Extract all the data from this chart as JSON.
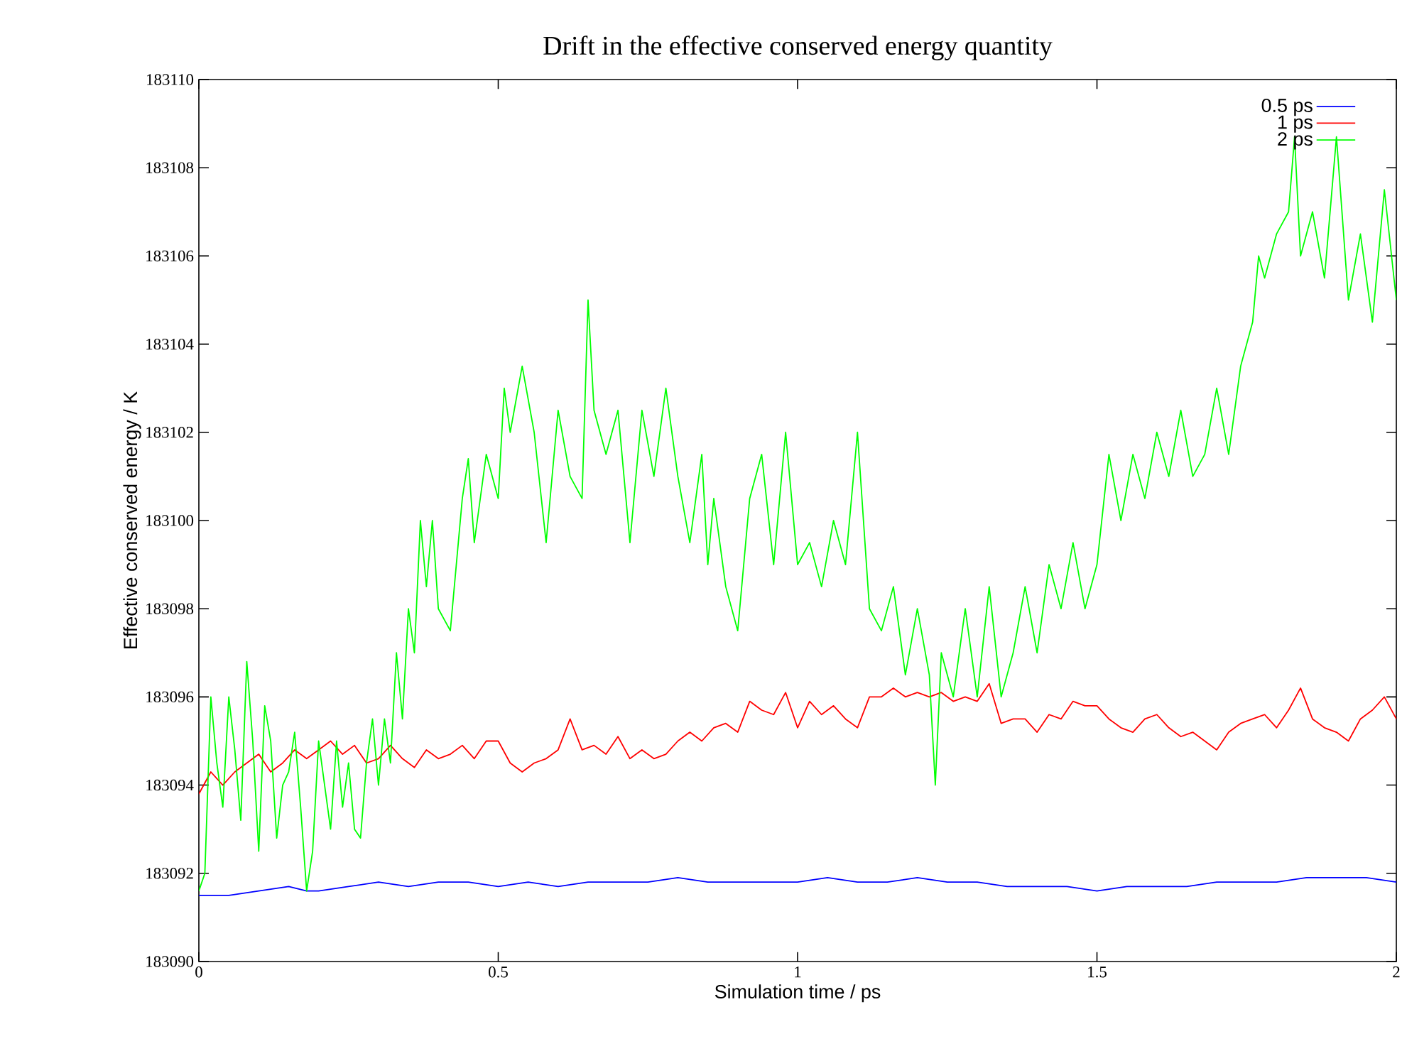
{
  "chart_data": {
    "type": "line",
    "title": "Drift in the effective conserved energy quantity",
    "xlabel": "Simulation time / ps",
    "ylabel": "Effective conserved energy / K",
    "xlim": [
      0,
      2
    ],
    "xticks": [
      0,
      0.5,
      1,
      1.5,
      2
    ],
    "ylim": [
      183090,
      183110
    ],
    "yticks": [
      183090,
      183092,
      183094,
      183096,
      183098,
      183100,
      183102,
      183104,
      183106,
      183108,
      183110
    ],
    "legend": "top right",
    "series": [
      {
        "name": "0.5 ps",
        "color": "#0000ff",
        "x": [
          0,
          0.05,
          0.1,
          0.15,
          0.18,
          0.2,
          0.25,
          0.3,
          0.35,
          0.4,
          0.45,
          0.5,
          0.55,
          0.6,
          0.65,
          0.7,
          0.75,
          0.8,
          0.85,
          0.9,
          0.95,
          1.0,
          1.05,
          1.1,
          1.15,
          1.2,
          1.25,
          1.3,
          1.35,
          1.4,
          1.45,
          1.5,
          1.55,
          1.6,
          1.65,
          1.7,
          1.75,
          1.8,
          1.85,
          1.9,
          1.95,
          2.0
        ],
        "values": [
          183091.5,
          183091.5,
          183091.6,
          183091.7,
          183091.6,
          183091.6,
          183091.7,
          183091.8,
          183091.7,
          183091.8,
          183091.8,
          183091.7,
          183091.8,
          183091.7,
          183091.8,
          183091.8,
          183091.8,
          183091.9,
          183091.8,
          183091.8,
          183091.8,
          183091.8,
          183091.9,
          183091.8,
          183091.8,
          183091.9,
          183091.8,
          183091.8,
          183091.7,
          183091.7,
          183091.7,
          183091.6,
          183091.7,
          183091.7,
          183091.7,
          183091.8,
          183091.8,
          183091.8,
          183091.9,
          183091.9,
          183091.9,
          183091.8
        ]
      },
      {
        "name": "1 ps",
        "color": "#ff0000",
        "x": [
          0,
          0.02,
          0.04,
          0.06,
          0.08,
          0.1,
          0.12,
          0.14,
          0.16,
          0.18,
          0.2,
          0.22,
          0.24,
          0.26,
          0.28,
          0.3,
          0.32,
          0.34,
          0.36,
          0.38,
          0.4,
          0.42,
          0.44,
          0.46,
          0.48,
          0.5,
          0.52,
          0.54,
          0.56,
          0.58,
          0.6,
          0.62,
          0.64,
          0.66,
          0.68,
          0.7,
          0.72,
          0.74,
          0.76,
          0.78,
          0.8,
          0.82,
          0.84,
          0.86,
          0.88,
          0.9,
          0.92,
          0.94,
          0.96,
          0.98,
          1.0,
          1.02,
          1.04,
          1.06,
          1.08,
          1.1,
          1.12,
          1.14,
          1.16,
          1.18,
          1.2,
          1.22,
          1.24,
          1.26,
          1.28,
          1.3,
          1.32,
          1.34,
          1.36,
          1.38,
          1.4,
          1.42,
          1.44,
          1.46,
          1.48,
          1.5,
          1.52,
          1.54,
          1.56,
          1.58,
          1.6,
          1.62,
          1.64,
          1.66,
          1.68,
          1.7,
          1.72,
          1.74,
          1.76,
          1.78,
          1.8,
          1.82,
          1.84,
          1.86,
          1.88,
          1.9,
          1.92,
          1.94,
          1.96,
          1.98,
          2.0
        ],
        "values": [
          183093.8,
          183094.3,
          183094.0,
          183094.3,
          183094.5,
          183094.7,
          183094.3,
          183094.5,
          183094.8,
          183094.6,
          183094.8,
          183095.0,
          183094.7,
          183094.9,
          183094.5,
          183094.6,
          183094.9,
          183094.6,
          183094.4,
          183094.8,
          183094.6,
          183094.7,
          183094.9,
          183094.6,
          183095.0,
          183095.0,
          183094.5,
          183094.3,
          183094.5,
          183094.6,
          183094.8,
          183095.5,
          183094.8,
          183094.9,
          183094.7,
          183095.1,
          183094.6,
          183094.8,
          183094.6,
          183094.7,
          183095.0,
          183095.2,
          183095.0,
          183095.3,
          183095.4,
          183095.2,
          183095.9,
          183095.7,
          183095.6,
          183096.1,
          183095.3,
          183095.9,
          183095.6,
          183095.8,
          183095.5,
          183095.3,
          183096.0,
          183096.0,
          183096.2,
          183096.0,
          183096.1,
          183096.0,
          183096.1,
          183095.9,
          183096.0,
          183095.9,
          183096.3,
          183095.4,
          183095.5,
          183095.5,
          183095.2,
          183095.6,
          183095.5,
          183095.9,
          183095.8,
          183095.8,
          183095.5,
          183095.3,
          183095.2,
          183095.5,
          183095.6,
          183095.3,
          183095.1,
          183095.2,
          183095.0,
          183094.8,
          183095.2,
          183095.4,
          183095.5,
          183095.6,
          183095.3,
          183095.7,
          183096.2,
          183095.5,
          183095.3,
          183095.2,
          183095.0,
          183095.5,
          183095.7,
          183096.0,
          183095.5
        ]
      },
      {
        "name": "2 ps",
        "color": "#00ff00",
        "x": [
          0,
          0.01,
          0.02,
          0.03,
          0.04,
          0.05,
          0.06,
          0.07,
          0.08,
          0.09,
          0.1,
          0.11,
          0.12,
          0.13,
          0.14,
          0.15,
          0.16,
          0.17,
          0.18,
          0.19,
          0.2,
          0.21,
          0.22,
          0.23,
          0.24,
          0.25,
          0.26,
          0.27,
          0.28,
          0.29,
          0.3,
          0.31,
          0.32,
          0.33,
          0.34,
          0.35,
          0.36,
          0.37,
          0.38,
          0.39,
          0.4,
          0.42,
          0.44,
          0.45,
          0.46,
          0.48,
          0.5,
          0.51,
          0.52,
          0.54,
          0.56,
          0.58,
          0.6,
          0.62,
          0.64,
          0.65,
          0.66,
          0.68,
          0.7,
          0.72,
          0.74,
          0.76,
          0.78,
          0.8,
          0.82,
          0.84,
          0.85,
          0.86,
          0.88,
          0.9,
          0.92,
          0.94,
          0.96,
          0.98,
          1.0,
          1.02,
          1.04,
          1.06,
          1.08,
          1.1,
          1.12,
          1.14,
          1.16,
          1.18,
          1.2,
          1.22,
          1.23,
          1.24,
          1.26,
          1.28,
          1.3,
          1.32,
          1.34,
          1.36,
          1.38,
          1.4,
          1.42,
          1.44,
          1.46,
          1.48,
          1.5,
          1.52,
          1.54,
          1.56,
          1.58,
          1.6,
          1.62,
          1.64,
          1.66,
          1.68,
          1.7,
          1.72,
          1.74,
          1.76,
          1.77,
          1.78,
          1.8,
          1.82,
          1.83,
          1.84,
          1.86,
          1.88,
          1.9,
          1.92,
          1.94,
          1.96,
          1.98,
          2.0
        ],
        "values": [
          183091.6,
          183092.0,
          183096.0,
          183094.5,
          183093.5,
          183096.0,
          183094.8,
          183093.2,
          183096.8,
          183095.0,
          183092.5,
          183095.8,
          183095.0,
          183092.8,
          183094.0,
          183094.3,
          183095.2,
          183093.5,
          183091.6,
          183092.5,
          183095.0,
          183094.0,
          183093.0,
          183095.0,
          183093.5,
          183094.5,
          183093.0,
          183092.8,
          183094.5,
          183095.5,
          183094.0,
          183095.5,
          183094.5,
          183097.0,
          183095.5,
          183098.0,
          183097.0,
          183100.0,
          183098.5,
          183100.0,
          183098.0,
          183097.5,
          183100.5,
          183101.4,
          183099.5,
          183101.5,
          183100.5,
          183103.0,
          183102.0,
          183103.5,
          183102.0,
          183099.5,
          183102.5,
          183101.0,
          183100.5,
          183105.0,
          183102.5,
          183101.5,
          183102.5,
          183099.5,
          183102.5,
          183101.0,
          183103.0,
          183101.0,
          183099.5,
          183101.5,
          183099.0,
          183100.5,
          183098.5,
          183097.5,
          183100.5,
          183101.5,
          183099.0,
          183102.0,
          183099.0,
          183099.5,
          183098.5,
          183100.0,
          183099.0,
          183102.0,
          183098.0,
          183097.5,
          183098.5,
          183096.5,
          183098.0,
          183096.5,
          183094.0,
          183097.0,
          183096.0,
          183098.0,
          183096.0,
          183098.5,
          183096.0,
          183097.0,
          183098.5,
          183097.0,
          183099.0,
          183098.0,
          183099.5,
          183098.0,
          183099.0,
          183101.5,
          183100.0,
          183101.5,
          183100.5,
          183102.0,
          183101.0,
          183102.5,
          183101.0,
          183101.5,
          183103.0,
          183101.5,
          183103.5,
          183104.5,
          183106.0,
          183105.5,
          183106.5,
          183107.0,
          183108.7,
          183106.0,
          183107.0,
          183105.5,
          183108.7,
          183105.0,
          183106.5,
          183104.5,
          183107.5,
          183105.0
        ]
      }
    ]
  }
}
